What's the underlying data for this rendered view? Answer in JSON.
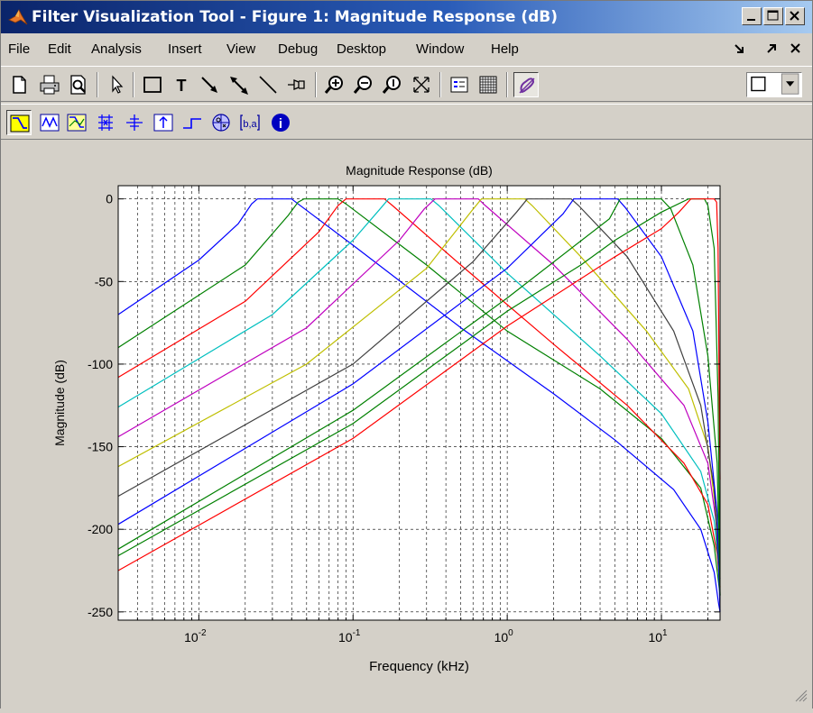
{
  "window": {
    "title": "Filter Visualization Tool - Figure 1: Magnitude Response (dB)"
  },
  "menu": [
    "File",
    "Edit",
    "Analysis",
    "Insert",
    "View",
    "Debug",
    "Desktop",
    "Window",
    "Help"
  ],
  "menu_right": [
    "dock-arrow-icon",
    "undock-arrow-icon",
    "close-x-icon"
  ],
  "toolbar1": [
    "new-figure-icon",
    "print-icon",
    "print-preview-icon",
    "select-arrow-icon",
    "rectangle-icon",
    "text-icon",
    "arrow-icon",
    "double-arrow-icon",
    "line-icon",
    "legend-pin-icon",
    "zoom-in-icon",
    "zoom-out-icon",
    "zoom-y-icon",
    "full-view-icon",
    "legend-toggle-icon",
    "grid-toggle-icon",
    "linked-analysis-icon",
    "combo-box"
  ],
  "toolbar2": [
    "magnitude-response-icon",
    "phase-response-icon",
    "magnitude-phase-icon",
    "group-delay-icon",
    "phase-delay-icon",
    "impulse-response-icon",
    "step-response-icon",
    "pole-zero-icon",
    "filter-coefficients-icon",
    "filter-information-icon"
  ],
  "colors": {
    "blue": "#0000ff",
    "green": "#008000",
    "red": "#ff0000",
    "cyan": "#00bfbf",
    "magenta": "#bf00bf",
    "yellow": "#bfbf00",
    "black": "#404040"
  },
  "chart_data": {
    "type": "line",
    "title": "Magnitude Response (dB)",
    "xlabel": "Frequency (kHz)",
    "ylabel": "Magnitude (dB)",
    "xscale": "log",
    "xlim": [
      0.003,
      24
    ],
    "ylim": [
      -255,
      8
    ],
    "xticks": [
      {
        "base": "10",
        "exp": "-2",
        "value": 0.01
      },
      {
        "base": "10",
        "exp": "-1",
        "value": 0.1
      },
      {
        "base": "10",
        "exp": "0",
        "value": 1
      },
      {
        "base": "10",
        "exp": "1",
        "value": 10
      }
    ],
    "yticks": [
      0,
      -50,
      -100,
      -150,
      -200,
      -250
    ],
    "grid": true,
    "series": [
      {
        "color": "#0000ff",
        "x": [
          0.003,
          0.01,
          0.018,
          0.022,
          0.024,
          0.04,
          0.044,
          0.1,
          0.5,
          2,
          5,
          12,
          18,
          22,
          23.5,
          24
        ],
        "y": [
          -70,
          -37,
          -15,
          -3,
          0,
          0,
          -3,
          -28,
          -78,
          -118,
          -146,
          -176,
          -200,
          -226,
          -245,
          -250
        ]
      },
      {
        "color": "#008000",
        "x": [
          0.003,
          0.02,
          0.038,
          0.044,
          0.048,
          0.08,
          0.09,
          0.3,
          1,
          4,
          10,
          18,
          22,
          24
        ],
        "y": [
          -90,
          -40,
          -10,
          -2,
          0,
          0,
          -3,
          -40,
          -80,
          -115,
          -145,
          -175,
          -210,
          -240
        ]
      },
      {
        "color": "#ff0000",
        "x": [
          0.003,
          0.02,
          0.06,
          0.08,
          0.09,
          0.16,
          0.18,
          0.5,
          2,
          6,
          14,
          20,
          23,
          24
        ],
        "y": [
          -108,
          -62,
          -20,
          -4,
          0,
          0,
          -4,
          -40,
          -88,
          -125,
          -160,
          -185,
          -215,
          -235
        ]
      },
      {
        "color": "#00bfbf",
        "x": [
          0.003,
          0.03,
          0.1,
          0.15,
          0.17,
          0.32,
          0.36,
          1,
          4,
          10,
          18,
          22,
          24
        ],
        "y": [
          -126,
          -70,
          -25,
          -6,
          0,
          0,
          -4,
          -45,
          -95,
          -130,
          -165,
          -195,
          -230
        ]
      },
      {
        "color": "#bf00bf",
        "x": [
          0.003,
          0.05,
          0.2,
          0.29,
          0.34,
          0.65,
          0.72,
          2,
          6,
          14,
          20,
          23,
          24
        ],
        "y": [
          -144,
          -78,
          -25,
          -6,
          0,
          0,
          -4,
          -40,
          -85,
          -125,
          -160,
          -200,
          -230
        ]
      },
      {
        "color": "#bfbf00",
        "x": [
          0.003,
          0.05,
          0.3,
          0.58,
          0.68,
          1.3,
          1.45,
          3,
          8,
          15,
          20,
          23,
          24
        ],
        "y": [
          -162,
          -100,
          -42,
          -8,
          0,
          0,
          -4,
          -35,
          -80,
          -115,
          -150,
          -195,
          -235
        ]
      },
      {
        "color": "#404040",
        "x": [
          0.003,
          0.1,
          0.6,
          1.15,
          1.35,
          2.6,
          2.9,
          6,
          12,
          18,
          22,
          24
        ],
        "y": [
          -180,
          -100,
          -38,
          -8,
          0,
          0,
          -4,
          -35,
          -80,
          -125,
          -175,
          -240
        ]
      },
      {
        "color": "#0000ff",
        "x": [
          0.003,
          0.1,
          1,
          2.3,
          2.7,
          5.2,
          5.8,
          10,
          16,
          20,
          23,
          24
        ],
        "y": [
          -197,
          -112,
          -42,
          -9,
          0,
          0,
          -5,
          -35,
          -80,
          -135,
          -190,
          -250
        ]
      },
      {
        "color": "#008000",
        "x": [
          0.003,
          0.1,
          1,
          4.6,
          5.4,
          10,
          11.5,
          16,
          20,
          23,
          24
        ],
        "y": [
          -212,
          -128,
          -60,
          -12,
          0,
          0,
          -6,
          -40,
          -95,
          -160,
          -240
        ]
      },
      {
        "color": "#008000",
        "x": [
          0.003,
          0.1,
          1,
          3,
          5,
          10,
          15,
          19,
          20,
          22,
          23.3,
          24
        ],
        "y": [
          -216,
          -136,
          -68,
          -40,
          -25,
          -8,
          0,
          0,
          -4,
          -30,
          -120,
          -240
        ]
      },
      {
        "color": "#ff0000",
        "x": [
          0.003,
          0.1,
          1,
          5,
          10,
          13,
          15.5,
          22,
          22.8,
          23.3,
          23.6,
          24
        ],
        "y": [
          -225,
          -145,
          -77,
          -35,
          -18,
          -8,
          0,
          0,
          -2,
          -30,
          -100,
          -170
        ]
      }
    ]
  }
}
